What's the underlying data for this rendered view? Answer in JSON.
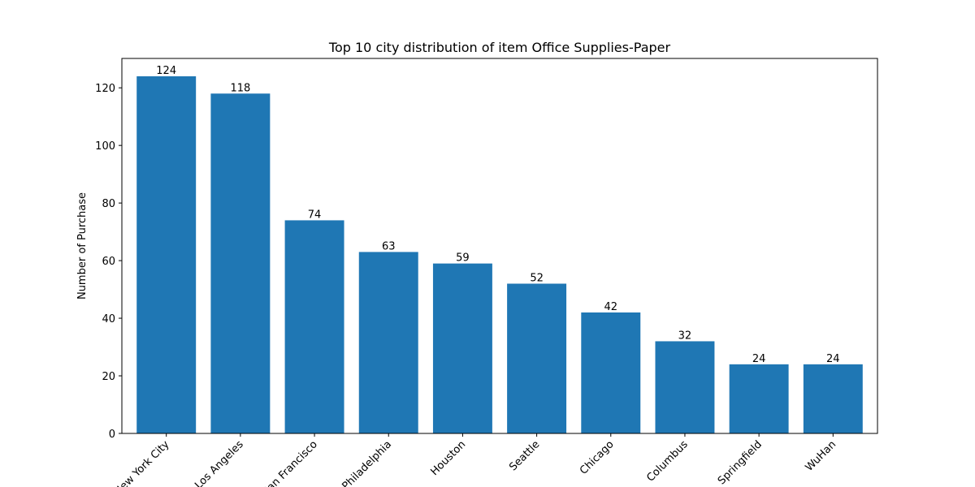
{
  "chart_data": {
    "type": "bar",
    "title": "Top 10 city distribution of item Office Supplies-Paper",
    "xlabel": "",
    "ylabel": "Number of Purchase",
    "categories": [
      "New York City",
      "Los Angeles",
      "San Francisco",
      "Philadelphia",
      "Houston",
      "Seattle",
      "Chicago",
      "Columbus",
      "Springfield",
      "WuHan"
    ],
    "values": [
      124,
      118,
      74,
      63,
      59,
      52,
      42,
      32,
      24,
      24
    ],
    "ylim": [
      0,
      130.2
    ],
    "yticks": [
      0,
      20,
      40,
      60,
      80,
      100,
      120
    ],
    "bar_color": "#1f77b4",
    "grid": false,
    "show_values": true
  }
}
